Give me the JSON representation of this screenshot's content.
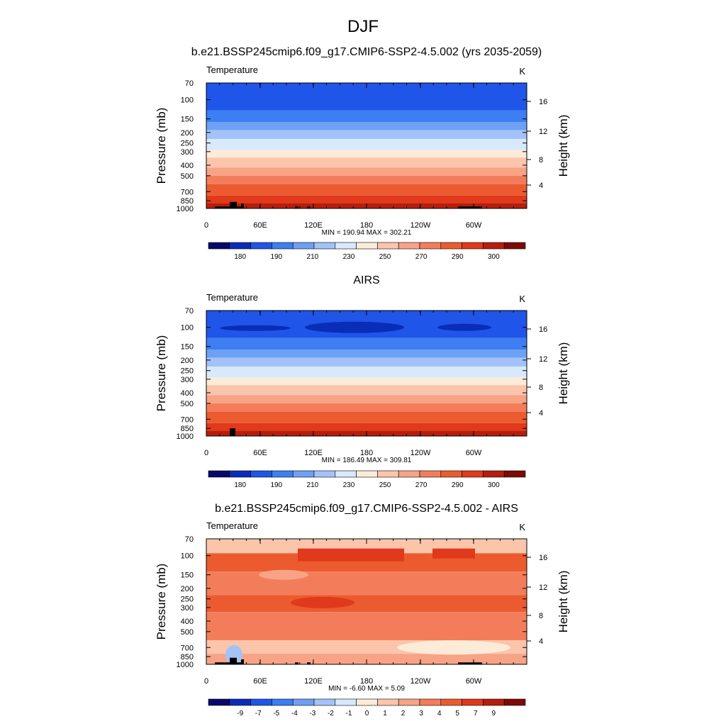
{
  "page_title": "DJF",
  "palette": {
    "temperature": [
      "#08086b",
      "#0a2db8",
      "#1f55e8",
      "#3d7ef2",
      "#6ea0f4",
      "#a3c3f8",
      "#d8e9fc",
      "#fdebd9",
      "#fbc5ab",
      "#f8a386",
      "#f37d5a",
      "#ec5b2f",
      "#e0391b",
      "#b71d0c",
      "#7d0a04"
    ],
    "difference": [
      "#08086b",
      "#0a2db8",
      "#1f55e8",
      "#3d7ef2",
      "#6ea0f4",
      "#a3c3f8",
      "#d8e9fc",
      "#fdebd9",
      "#fbc5ab",
      "#f8a386",
      "#f37d5a",
      "#ec5b2f",
      "#e0391b",
      "#b71d0c",
      "#7d0a04"
    ]
  },
  "chart_data": [
    {
      "type": "heatmap",
      "title": "b.e21.BSSP245cmip6.f09_g17.CMIP6-SSP2-4.5.002 (yrs 2035-2059)",
      "variable": "Temperature",
      "units": "K",
      "ylabel": "Pressure (mb)",
      "ylabel_right": "Height (km)",
      "xticks": [
        "0",
        "60E",
        "120E",
        "180",
        "120W",
        "60W"
      ],
      "yticks": [
        "70",
        "100",
        "150",
        "200",
        "250",
        "300",
        "400",
        "500",
        "700",
        "850",
        "1000"
      ],
      "yticks_right": [
        "16",
        "12",
        "8",
        "4"
      ],
      "stats": "MIN = 190.94  MAX = 302.21",
      "levels": [
        "180",
        "190",
        "210",
        "230",
        "250",
        "270",
        "290",
        "300"
      ]
    },
    {
      "type": "heatmap",
      "title": "AIRS",
      "variable": "Temperature",
      "units": "K",
      "ylabel": "Pressure (mb)",
      "ylabel_right": "Height (km)",
      "xticks": [
        "0",
        "60E",
        "120E",
        "180",
        "120W",
        "60W"
      ],
      "yticks": [
        "70",
        "100",
        "150",
        "200",
        "250",
        "300",
        "400",
        "500",
        "700",
        "850",
        "1000"
      ],
      "yticks_right": [
        "16",
        "12",
        "8",
        "4"
      ],
      "stats": "MIN = 186.49  MAX = 309.81",
      "levels": [
        "180",
        "190",
        "210",
        "230",
        "250",
        "270",
        "290",
        "300"
      ]
    },
    {
      "type": "heatmap",
      "title": "b.e21.BSSP245cmip6.f09_g17.CMIP6-SSP2-4.5.002 - AIRS",
      "variable": "Temperature",
      "units": "K",
      "ylabel": "Pressure (mb)",
      "ylabel_right": "Height (km)",
      "xticks": [
        "0",
        "60E",
        "120E",
        "180",
        "120W",
        "60W"
      ],
      "yticks": [
        "70",
        "100",
        "150",
        "200",
        "250",
        "300",
        "400",
        "500",
        "700",
        "850",
        "1000"
      ],
      "yticks_right": [
        "16",
        "12",
        "8",
        "4"
      ],
      "stats": "MIN =  -6.60  MAX =   5.09",
      "levels": [
        "-9",
        "-7",
        "-5",
        "-4",
        "-3",
        "-2",
        "-1",
        "0",
        "1",
        "2",
        "3",
        "4",
        "5",
        "7",
        "9"
      ]
    }
  ]
}
